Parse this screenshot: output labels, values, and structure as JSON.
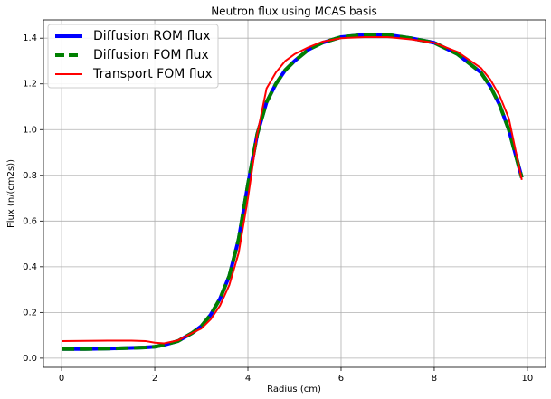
{
  "chart_data": {
    "type": "line",
    "title": "Neutron flux using MCAS basis",
    "xlabel": "Radius (cm)",
    "ylabel": "Flux (n/(cm2s))",
    "x": [
      0,
      0.5,
      1,
      1.5,
      1.8,
      2.0,
      2.2,
      2.5,
      2.8,
      3.0,
      3.2,
      3.4,
      3.6,
      3.8,
      4.0,
      4.2,
      4.4,
      4.6,
      4.8,
      5.0,
      5.3,
      5.6,
      6.0,
      6.5,
      7.0,
      7.5,
      8.0,
      8.5,
      9.0,
      9.2,
      9.4,
      9.6,
      9.88
    ],
    "series": [
      {
        "name": "Diffusion ROM flux",
        "color": "#0000ff",
        "dash": false,
        "width": 4,
        "values": [
          0.04,
          0.04,
          0.042,
          0.045,
          0.047,
          0.05,
          0.058,
          0.075,
          0.11,
          0.14,
          0.19,
          0.26,
          0.36,
          0.52,
          0.76,
          0.98,
          1.12,
          1.2,
          1.26,
          1.3,
          1.35,
          1.38,
          1.405,
          1.415,
          1.415,
          1.4,
          1.38,
          1.33,
          1.25,
          1.19,
          1.11,
          1.0,
          0.79
        ]
      },
      {
        "name": "Diffusion FOM flux",
        "color": "#008000",
        "dash": true,
        "width": 4,
        "values": [
          0.04,
          0.04,
          0.042,
          0.045,
          0.047,
          0.05,
          0.058,
          0.075,
          0.11,
          0.14,
          0.19,
          0.26,
          0.36,
          0.52,
          0.76,
          0.98,
          1.12,
          1.2,
          1.26,
          1.3,
          1.35,
          1.38,
          1.405,
          1.415,
          1.415,
          1.4,
          1.38,
          1.33,
          1.25,
          1.19,
          1.11,
          1.0,
          0.79
        ]
      },
      {
        "name": "Transport FOM flux",
        "color": "#ff0000",
        "dash": false,
        "width": 2,
        "values": [
          0.075,
          0.076,
          0.077,
          0.077,
          0.075,
          0.068,
          0.065,
          0.078,
          0.11,
          0.13,
          0.17,
          0.23,
          0.32,
          0.46,
          0.7,
          0.98,
          1.18,
          1.25,
          1.3,
          1.33,
          1.36,
          1.385,
          1.4,
          1.405,
          1.405,
          1.395,
          1.38,
          1.34,
          1.27,
          1.22,
          1.15,
          1.05,
          0.78
        ]
      }
    ],
    "xlim": [
      -0.39,
      10.39
    ],
    "ylim": [
      -0.04,
      1.48
    ],
    "xticks": [
      0,
      2,
      4,
      6,
      8,
      10
    ],
    "yticks": [
      {
        "value": 0,
        "label": "0.0"
      },
      0.2,
      0.4,
      0.6,
      0.8,
      {
        "value": 1,
        "label": "1.0"
      },
      1.2,
      1.4
    ],
    "grid": true,
    "legend": "upper-left"
  }
}
